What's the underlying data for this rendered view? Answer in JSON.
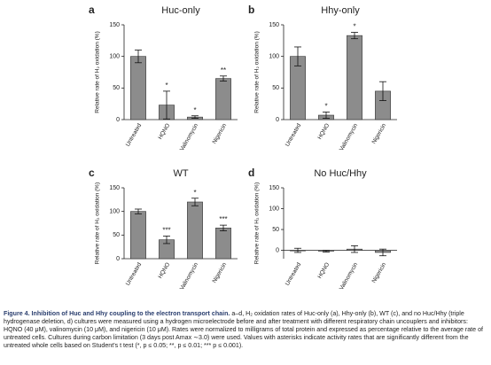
{
  "chart_data": [
    {
      "type": "bar",
      "panel": "a",
      "title": "Huc-only",
      "ylabel": "Relative rate of H₂ oxidation (%)",
      "categories": [
        "Untreated",
        "HQNO",
        "Valinomycin",
        "Nigericin"
      ],
      "values": [
        100,
        23,
        4,
        65
      ],
      "errors": [
        10,
        22,
        2,
        4
      ],
      "annotations": [
        null,
        "*",
        "*",
        "**"
      ],
      "color": "#8c8c8c",
      "ylim": [
        0,
        150
      ],
      "yticks": [
        0,
        50,
        100,
        150
      ]
    },
    {
      "type": "bar",
      "panel": "b",
      "title": "Hhy-only",
      "ylabel": "Relative rate of H₂ oxidation (%)",
      "categories": [
        "Untreated",
        "HQNO",
        "Valinomycin",
        "Nigericin"
      ],
      "values": [
        100,
        7,
        133,
        45
      ],
      "errors": [
        15,
        5,
        5,
        15
      ],
      "annotations": [
        null,
        "*",
        "*",
        null
      ],
      "color": "#8c8c8c",
      "ylim": [
        0,
        150
      ],
      "yticks": [
        0,
        50,
        100,
        150
      ]
    },
    {
      "type": "bar",
      "panel": "c",
      "title": "WT",
      "ylabel": "Relative rate of H₂ oxidation (%)",
      "categories": [
        "Untreated",
        "HQNO",
        "Valinomycin",
        "Nigericin"
      ],
      "values": [
        100,
        40,
        120,
        65
      ],
      "errors": [
        5,
        8,
        8,
        6
      ],
      "annotations": [
        null,
        "***",
        "*",
        "***"
      ],
      "color": "#8c8c8c",
      "ylim": [
        0,
        150
      ],
      "yticks": [
        0,
        50,
        100,
        150
      ]
    },
    {
      "type": "bar",
      "panel": "d",
      "title": "No Huc/Hhy",
      "ylabel": "Relative rate of H₂ oxidation (%)",
      "categories": [
        "Untreated",
        "HQNO",
        "Valinomycin",
        "Nigericin"
      ],
      "values": [
        0,
        -2,
        3,
        -5
      ],
      "errors": [
        5,
        2,
        8,
        8
      ],
      "annotations": [
        null,
        null,
        null,
        null
      ],
      "color": "#8c8c8c",
      "ylim": [
        -20,
        150
      ],
      "yticks": [
        0,
        50,
        100,
        150
      ]
    }
  ],
  "caption": {
    "title": "Figure 4. Inhibition of Huc and Hhy coupling to the electron transport chain.",
    "text": "a–d, H₂ oxidation rates of Huc-only (a), Hhy-only (b), WT (c), and no Huc/Hhy (triple hydrogenase deletion, d) cultures were measured using a hydrogen microelectrode before and after treatment with different respiratory chain uncouplers and inhibitors: HQNO (40 μM), valinomycin (10 μM), and nigericin (10 μM). Rates were normalized to milligrams of total protein and expressed as percentage relative to the average rate of untreated cells. Cultures during carbon limitation (3 days post Amax ∼3.0) were used. Values with asterisks indicate activity rates that are significantly different from the untreated whole cells based on Student's t test (*, p ≤ 0.05; **, p ≤ 0.01; *** p ≤ 0.001)."
  }
}
